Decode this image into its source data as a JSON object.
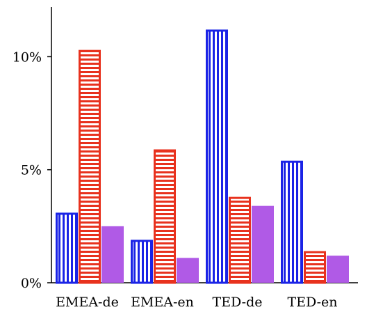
{
  "chart_data": {
    "type": "bar",
    "categories": [
      "EMEA-de",
      "EMEA-en",
      "TED-de",
      "TED-en"
    ],
    "series": [
      {
        "values": [
          3.1,
          1.9,
          11.2,
          5.4
        ],
        "color": "#1a23e6",
        "pattern": "vertical-stripes"
      },
      {
        "values": [
          10.3,
          5.9,
          3.8,
          1.4
        ],
        "color": "#e8321e",
        "pattern": "horizontal-stripes"
      },
      {
        "values": [
          2.5,
          1.1,
          3.4,
          1.2
        ],
        "color": "#b05ae6",
        "pattern": "solid"
      }
    ],
    "yticks": [
      {
        "value": 0,
        "label": "0%"
      },
      {
        "value": 5,
        "label": "5%"
      },
      {
        "value": 10,
        "label": "10%"
      }
    ],
    "ylim": [
      0,
      12.2
    ],
    "grid": false,
    "legend": "none"
  }
}
